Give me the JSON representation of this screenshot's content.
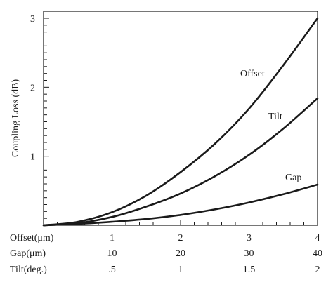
{
  "chart_data": {
    "type": "line",
    "title": "",
    "ylabel": "Coupling Loss (dB)",
    "ylim": [
      0,
      3
    ],
    "y_ticks": [
      "1",
      "2",
      "3"
    ],
    "x_axes": [
      {
        "label": "Offset(μm)",
        "ticks": [
          "1",
          "2",
          "3",
          "4"
        ]
      },
      {
        "label": "Gap(μm)",
        "ticks": [
          "10",
          "20",
          "30",
          "40"
        ]
      },
      {
        "label": "Tilt(deg.)",
        "ticks": [
          ".5",
          "1",
          "1.5",
          "2"
        ]
      }
    ],
    "x_normalized_range": [
      0,
      4
    ],
    "series": [
      {
        "name": "Offset",
        "x": [
          0,
          0.5,
          1,
          1.5,
          2,
          2.5,
          3,
          3.5,
          4
        ],
        "y": [
          0,
          0.05,
          0.19,
          0.43,
          0.77,
          1.18,
          1.69,
          2.32,
          3.0
        ]
      },
      {
        "name": "Tilt",
        "x": [
          0,
          0.5,
          1,
          1.5,
          2,
          2.5,
          3,
          3.5,
          4
        ],
        "y": [
          0,
          0.03,
          0.12,
          0.27,
          0.46,
          0.71,
          1.02,
          1.4,
          1.84
        ]
      },
      {
        "name": "Gap",
        "x": [
          0,
          0.5,
          1,
          1.5,
          2,
          2.5,
          3,
          3.5,
          4
        ],
        "y": [
          0,
          0.02,
          0.05,
          0.09,
          0.15,
          0.23,
          0.33,
          0.45,
          0.59
        ]
      }
    ],
    "grid": false,
    "legend": "inline labels near curve ends",
    "line_color": "#1a1a1a"
  }
}
